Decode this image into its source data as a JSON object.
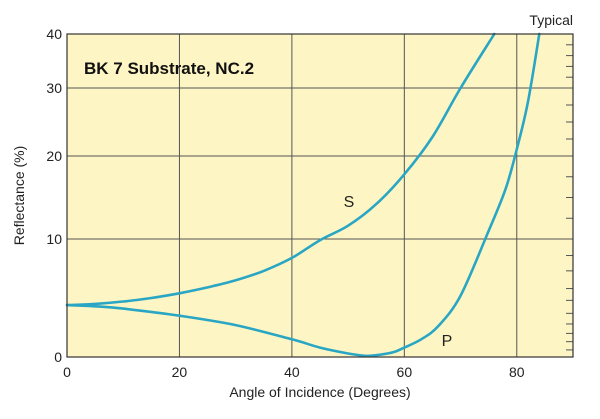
{
  "chart_data": {
    "type": "line",
    "title": "BK 7 Substrate, NC.2",
    "note": "Typical",
    "xlabel": "Angle of Incidence (Degrees)",
    "ylabel": "Reflectance (%)",
    "xlim": [
      0,
      90
    ],
    "x_ticks": [
      0,
      20,
      40,
      60,
      80
    ],
    "x_tick_labels": [
      "0",
      "20",
      "40",
      "60",
      "80"
    ],
    "y_ticks": [
      0,
      10,
      20,
      30,
      40
    ],
    "y_tick_labels": [
      "0",
      "10",
      "20",
      "30",
      "40"
    ],
    "y_scale": "nonlinear (compressed at low reflectance)",
    "grid": true,
    "background_color": "#fdf5c4",
    "line_color": "#2aa6c5",
    "series": [
      {
        "name": "S",
        "x": [
          0,
          5,
          10,
          15,
          20,
          25,
          30,
          35,
          40,
          45,
          50,
          55,
          60,
          65,
          70,
          76
        ],
        "y": [
          4.4,
          4.5,
          4.7,
          5.0,
          5.4,
          5.9,
          6.5,
          7.3,
          8.4,
          9.9,
          11.6,
          14.2,
          17.8,
          22.8,
          30.0,
          40.0
        ]
      },
      {
        "name": "P",
        "x": [
          0,
          5,
          10,
          20,
          30,
          40,
          45,
          50,
          53,
          55,
          58,
          60,
          63,
          66,
          70,
          75,
          78,
          80,
          82,
          84
        ],
        "y": [
          4.4,
          4.3,
          4.1,
          3.5,
          2.7,
          1.5,
          0.8,
          0.3,
          0.1,
          0.15,
          0.4,
          0.8,
          1.5,
          2.6,
          5.2,
          11.0,
          16.0,
          21.0,
          28.0,
          40.0
        ]
      }
    ]
  }
}
